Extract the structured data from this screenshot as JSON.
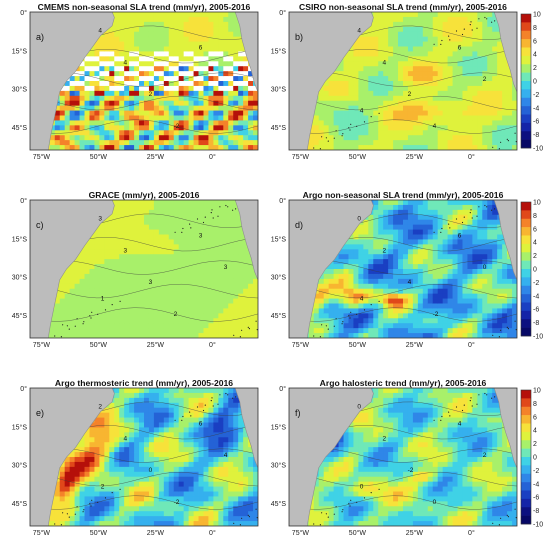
{
  "figure": {
    "panels": [
      {
        "id": "a",
        "label": "a)",
        "title": "CMEMS non-seasonal SLA trend (mm/yr), 2005-2016",
        "contour_labels": [
          "4",
          "4",
          "2",
          "-2",
          "6"
        ],
        "style": "noisy"
      },
      {
        "id": "b",
        "label": "b)",
        "title": "CSIRO non-seasonal SLA trend (mm/yr), 2005-2016",
        "contour_labels": [
          "4",
          "4",
          "2",
          "4",
          "6",
          "2",
          "4"
        ],
        "style": "smooth"
      },
      {
        "id": "c",
        "label": "c)",
        "title": "GRACE (mm/yr), 2005-2016",
        "contour_labels": [
          "3",
          "3",
          "3",
          "2",
          "3",
          "3",
          "1"
        ],
        "style": "grace"
      },
      {
        "id": "d",
        "label": "d)",
        "title": "Argo non-seasonal SLA trend (mm/yr), 2005-2016",
        "contour_labels": [
          "0",
          "2",
          "4",
          "-2",
          "6",
          "0",
          "4"
        ],
        "style": "argo_sla"
      },
      {
        "id": "e",
        "label": "e)",
        "title": "Argo thermosteric trend (mm/yr), 2005-2016",
        "contour_labels": [
          "2",
          "4",
          "0",
          "-2",
          "6",
          "4",
          "2"
        ],
        "style": "thermo"
      },
      {
        "id": "f",
        "label": "f)",
        "title": "Argo halosteric trend (mm/yr), 2005-2016",
        "contour_labels": [
          "0",
          "2",
          "-2",
          "0",
          "4",
          "2",
          "0"
        ],
        "style": "halo"
      }
    ],
    "lat_ticks": [
      "0°",
      "15°S",
      "30°S",
      "45°S"
    ],
    "lon_ticks": [
      "75°W",
      "50°W",
      "25°W",
      "0°"
    ],
    "colorbar": {
      "ticks": [
        "10",
        "8",
        "6",
        "4",
        "2",
        "0",
        "-2",
        "-4",
        "-6",
        "-8",
        "-10"
      ],
      "colors": [
        "#b5100a",
        "#e0481a",
        "#f4822a",
        "#f8b531",
        "#f7e23a",
        "#dff23c",
        "#a8f06a",
        "#6fe8b8",
        "#3fd2e6",
        "#35b0ee",
        "#2f86e8",
        "#2462d6",
        "#1a3fc2",
        "#1424a8",
        "#0c1080",
        "#070866"
      ]
    },
    "colors": {
      "land": "#bcbcbc",
      "land_stroke": "#8e8e8e",
      "contour": "#3a3a3a"
    }
  }
}
